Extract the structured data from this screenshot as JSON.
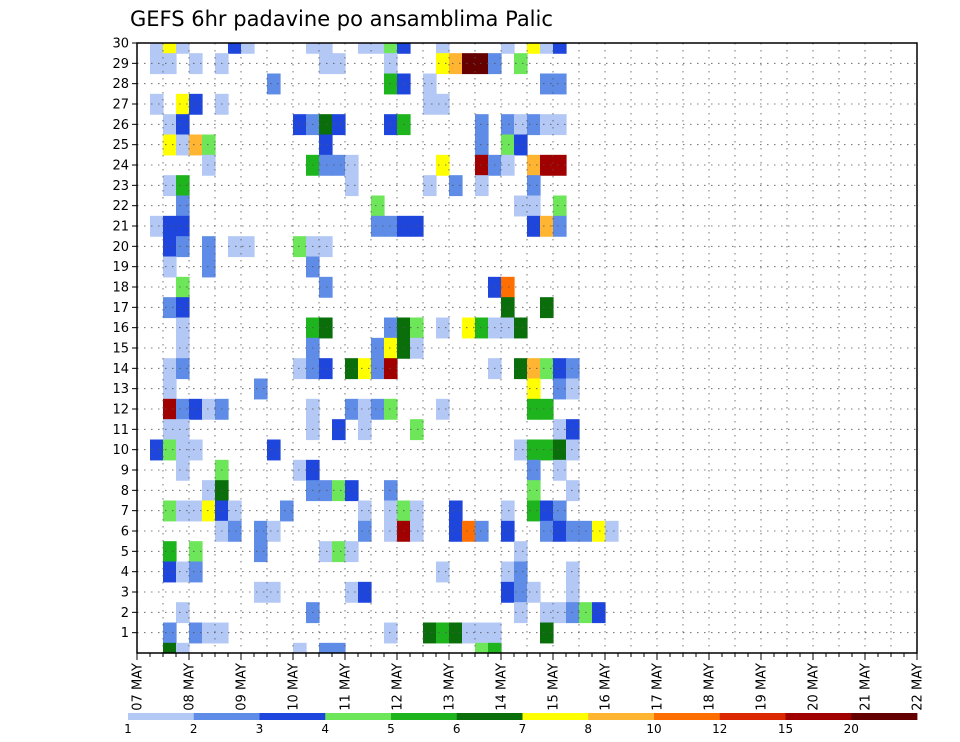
{
  "chart_data": {
    "type": "heatmap",
    "title": "GEFS 6hr padavine po ansamblima Palic",
    "x_ticks": [
      "07 MAY",
      "08 MAY",
      "09 MAY",
      "10 MAY",
      "11 MAY",
      "12 MAY",
      "13 MAY",
      "14 MAY",
      "15 MAY",
      "16 MAY",
      "17 MAY",
      "18 MAY",
      "19 MAY",
      "20 MAY",
      "21 MAY",
      "22 MAY"
    ],
    "y_ticks": [
      "1",
      "2",
      "3",
      "4",
      "5",
      "6",
      "7",
      "8",
      "9",
      "10",
      "11",
      "12",
      "13",
      "14",
      "15",
      "16",
      "17",
      "18",
      "19",
      "20",
      "21",
      "22",
      "23",
      "24",
      "25",
      "26",
      "27",
      "28",
      "29",
      "30"
    ],
    "time_steps_per_day": 4,
    "ensemble_range": [
      0,
      30
    ],
    "grid": true,
    "colorbar": {
      "labels": [
        "1",
        "2",
        "3",
        "4",
        "5",
        "6",
        "7",
        "8",
        "10",
        "12",
        "15",
        "20"
      ],
      "colors": [
        "#b4c8f5",
        "#5f8ce6",
        "#1e46dc",
        "#6ee65a",
        "#1eb41e",
        "#0a6e0a",
        "#ffff00",
        "#ffb432",
        "#ff6e00",
        "#dc2800",
        "#a00000",
        "#640000"
      ]
    },
    "cells": [
      [
        1,
        30,
        1
      ],
      [
        2,
        30,
        7
      ],
      [
        3,
        30,
        1
      ],
      [
        7,
        30,
        3
      ],
      [
        8,
        30,
        1
      ],
      [
        13,
        30,
        1
      ],
      [
        14,
        30,
        1
      ],
      [
        17,
        30,
        1
      ],
      [
        18,
        30,
        1
      ],
      [
        19,
        30,
        4
      ],
      [
        20,
        30,
        3
      ],
      [
        23,
        30,
        1
      ],
      [
        28,
        30,
        1
      ],
      [
        30,
        30,
        7
      ],
      [
        31,
        30,
        1
      ],
      [
        32,
        30,
        3
      ],
      [
        1,
        29,
        1
      ],
      [
        2,
        29,
        1
      ],
      [
        4,
        29,
        1
      ],
      [
        6,
        29,
        1
      ],
      [
        14,
        29,
        1
      ],
      [
        15,
        29,
        1
      ],
      [
        19,
        29,
        1
      ],
      [
        23,
        29,
        7
      ],
      [
        24,
        29,
        8
      ],
      [
        25,
        29,
        12
      ],
      [
        26,
        29,
        12
      ],
      [
        27,
        29,
        2
      ],
      [
        29,
        29,
        4
      ],
      [
        10,
        28,
        2
      ],
      [
        19,
        28,
        5
      ],
      [
        20,
        28,
        3
      ],
      [
        22,
        28,
        1
      ],
      [
        31,
        28,
        2
      ],
      [
        32,
        28,
        2
      ],
      [
        1,
        27,
        1
      ],
      [
        3,
        27,
        7
      ],
      [
        4,
        27,
        3
      ],
      [
        6,
        27,
        1
      ],
      [
        22,
        27,
        1
      ],
      [
        23,
        27,
        1
      ],
      [
        2,
        26,
        1
      ],
      [
        3,
        26,
        3
      ],
      [
        12,
        26,
        3
      ],
      [
        13,
        26,
        2
      ],
      [
        14,
        26,
        6
      ],
      [
        15,
        26,
        3
      ],
      [
        19,
        26,
        3
      ],
      [
        20,
        26,
        5
      ],
      [
        26,
        26,
        2
      ],
      [
        28,
        26,
        2
      ],
      [
        29,
        26,
        1
      ],
      [
        30,
        26,
        2
      ],
      [
        31,
        26,
        1
      ],
      [
        32,
        26,
        1
      ],
      [
        2,
        25,
        7
      ],
      [
        3,
        25,
        1
      ],
      [
        4,
        25,
        8
      ],
      [
        5,
        25,
        4
      ],
      [
        14,
        25,
        3
      ],
      [
        26,
        25,
        2
      ],
      [
        28,
        25,
        4
      ],
      [
        29,
        25,
        3
      ],
      [
        5,
        24,
        1
      ],
      [
        13,
        24,
        5
      ],
      [
        14,
        24,
        2
      ],
      [
        15,
        24,
        2
      ],
      [
        16,
        24,
        1
      ],
      [
        23,
        24,
        7
      ],
      [
        26,
        24,
        11
      ],
      [
        27,
        24,
        2
      ],
      [
        28,
        24,
        1
      ],
      [
        30,
        24,
        8
      ],
      [
        31,
        24,
        11
      ],
      [
        32,
        24,
        11
      ],
      [
        2,
        23,
        1
      ],
      [
        3,
        23,
        5
      ],
      [
        16,
        23,
        1
      ],
      [
        22,
        23,
        1
      ],
      [
        24,
        23,
        2
      ],
      [
        26,
        23,
        1
      ],
      [
        30,
        23,
        2
      ],
      [
        3,
        22,
        2
      ],
      [
        18,
        22,
        4
      ],
      [
        29,
        22,
        1
      ],
      [
        30,
        22,
        1
      ],
      [
        32,
        22,
        4
      ],
      [
        1,
        21,
        1
      ],
      [
        2,
        21,
        3
      ],
      [
        3,
        21,
        3
      ],
      [
        18,
        21,
        2
      ],
      [
        19,
        21,
        2
      ],
      [
        20,
        21,
        3
      ],
      [
        21,
        21,
        3
      ],
      [
        30,
        21,
        3
      ],
      [
        31,
        21,
        8
      ],
      [
        32,
        21,
        2
      ],
      [
        2,
        20,
        3
      ],
      [
        3,
        20,
        2
      ],
      [
        5,
        20,
        2
      ],
      [
        7,
        20,
        1
      ],
      [
        8,
        20,
        1
      ],
      [
        12,
        20,
        4
      ],
      [
        13,
        20,
        1
      ],
      [
        14,
        20,
        1
      ],
      [
        2,
        19,
        1
      ],
      [
        5,
        19,
        2
      ],
      [
        13,
        19,
        2
      ],
      [
        3,
        18,
        4
      ],
      [
        14,
        18,
        2
      ],
      [
        27,
        18,
        3
      ],
      [
        28,
        18,
        9
      ],
      [
        2,
        17,
        2
      ],
      [
        3,
        17,
        3
      ],
      [
        28,
        17,
        6
      ],
      [
        31,
        17,
        6
      ],
      [
        3,
        16,
        1
      ],
      [
        13,
        16,
        5
      ],
      [
        14,
        16,
        6
      ],
      [
        19,
        16,
        2
      ],
      [
        20,
        16,
        6
      ],
      [
        21,
        16,
        4
      ],
      [
        23,
        16,
        1
      ],
      [
        25,
        16,
        7
      ],
      [
        26,
        16,
        5
      ],
      [
        27,
        16,
        1
      ],
      [
        28,
        16,
        1
      ],
      [
        29,
        16,
        6
      ],
      [
        3,
        15,
        1
      ],
      [
        13,
        15,
        2
      ],
      [
        18,
        15,
        2
      ],
      [
        19,
        15,
        7
      ],
      [
        20,
        15,
        6
      ],
      [
        21,
        15,
        1
      ],
      [
        2,
        14,
        1
      ],
      [
        3,
        14,
        2
      ],
      [
        12,
        14,
        1
      ],
      [
        13,
        14,
        2
      ],
      [
        14,
        14,
        3
      ],
      [
        16,
        14,
        6
      ],
      [
        17,
        14,
        7
      ],
      [
        18,
        14,
        2
      ],
      [
        19,
        14,
        11
      ],
      [
        27,
        14,
        1
      ],
      [
        29,
        14,
        6
      ],
      [
        30,
        14,
        8
      ],
      [
        31,
        14,
        4
      ],
      [
        32,
        14,
        3
      ],
      [
        33,
        14,
        2
      ],
      [
        2,
        13,
        1
      ],
      [
        9,
        13,
        2
      ],
      [
        30,
        13,
        7
      ],
      [
        32,
        13,
        2
      ],
      [
        33,
        13,
        1
      ],
      [
        2,
        12,
        11
      ],
      [
        3,
        12,
        2
      ],
      [
        4,
        12,
        3
      ],
      [
        5,
        12,
        1
      ],
      [
        6,
        12,
        2
      ],
      [
        13,
        12,
        1
      ],
      [
        16,
        12,
        2
      ],
      [
        17,
        12,
        1
      ],
      [
        18,
        12,
        2
      ],
      [
        19,
        12,
        4
      ],
      [
        23,
        12,
        1
      ],
      [
        30,
        12,
        5
      ],
      [
        31,
        12,
        5
      ],
      [
        2,
        11,
        1
      ],
      [
        3,
        11,
        1
      ],
      [
        13,
        11,
        1
      ],
      [
        15,
        11,
        3
      ],
      [
        17,
        11,
        1
      ],
      [
        21,
        11,
        4
      ],
      [
        32,
        11,
        1
      ],
      [
        33,
        11,
        3
      ],
      [
        1,
        10,
        3
      ],
      [
        2,
        10,
        4
      ],
      [
        3,
        10,
        1
      ],
      [
        4,
        10,
        1
      ],
      [
        10,
        10,
        3
      ],
      [
        29,
        10,
        1
      ],
      [
        30,
        10,
        5
      ],
      [
        31,
        10,
        5
      ],
      [
        32,
        10,
        6
      ],
      [
        33,
        10,
        1
      ],
      [
        3,
        9,
        1
      ],
      [
        6,
        9,
        4
      ],
      [
        12,
        9,
        1
      ],
      [
        13,
        9,
        3
      ],
      [
        30,
        9,
        2
      ],
      [
        32,
        9,
        1
      ],
      [
        5,
        8,
        1
      ],
      [
        6,
        8,
        6
      ],
      [
        13,
        8,
        2
      ],
      [
        14,
        8,
        2
      ],
      [
        15,
        8,
        4
      ],
      [
        16,
        8,
        3
      ],
      [
        19,
        8,
        2
      ],
      [
        30,
        8,
        4
      ],
      [
        33,
        8,
        1
      ],
      [
        2,
        7,
        4
      ],
      [
        3,
        7,
        1
      ],
      [
        4,
        7,
        1
      ],
      [
        5,
        7,
        7
      ],
      [
        6,
        7,
        3
      ],
      [
        7,
        7,
        1
      ],
      [
        11,
        7,
        2
      ],
      [
        17,
        7,
        1
      ],
      [
        19,
        7,
        1
      ],
      [
        20,
        7,
        4
      ],
      [
        21,
        7,
        1
      ],
      [
        24,
        7,
        3
      ],
      [
        28,
        7,
        1
      ],
      [
        30,
        7,
        5
      ],
      [
        31,
        7,
        3
      ],
      [
        32,
        7,
        2
      ],
      [
        6,
        6,
        1
      ],
      [
        7,
        6,
        2
      ],
      [
        9,
        6,
        2
      ],
      [
        10,
        6,
        1
      ],
      [
        17,
        6,
        2
      ],
      [
        19,
        6,
        1
      ],
      [
        20,
        6,
        11
      ],
      [
        21,
        6,
        1
      ],
      [
        24,
        6,
        3
      ],
      [
        25,
        6,
        9
      ],
      [
        26,
        6,
        2
      ],
      [
        28,
        6,
        3
      ],
      [
        31,
        6,
        2
      ],
      [
        32,
        6,
        3
      ],
      [
        33,
        6,
        2
      ],
      [
        34,
        6,
        2
      ],
      [
        35,
        6,
        7
      ],
      [
        36,
        6,
        1
      ],
      [
        2,
        5,
        5
      ],
      [
        4,
        5,
        4
      ],
      [
        9,
        5,
        2
      ],
      [
        14,
        5,
        1
      ],
      [
        15,
        5,
        4
      ],
      [
        16,
        5,
        1
      ],
      [
        29,
        5,
        1
      ],
      [
        2,
        4,
        3
      ],
      [
        3,
        4,
        1
      ],
      [
        4,
        4,
        2
      ],
      [
        23,
        4,
        1
      ],
      [
        28,
        4,
        1
      ],
      [
        29,
        4,
        2
      ],
      [
        33,
        4,
        1
      ],
      [
        9,
        3,
        1
      ],
      [
        10,
        3,
        1
      ],
      [
        16,
        3,
        1
      ],
      [
        17,
        3,
        3
      ],
      [
        28,
        3,
        3
      ],
      [
        29,
        3,
        2
      ],
      [
        30,
        3,
        1
      ],
      [
        33,
        3,
        1
      ],
      [
        3,
        2,
        1
      ],
      [
        13,
        2,
        2
      ],
      [
        29,
        2,
        1
      ],
      [
        31,
        2,
        1
      ],
      [
        32,
        2,
        1
      ],
      [
        33,
        2,
        2
      ],
      [
        34,
        2,
        4
      ],
      [
        35,
        2,
        3
      ],
      [
        2,
        1,
        2
      ],
      [
        4,
        1,
        2
      ],
      [
        5,
        1,
        1
      ],
      [
        6,
        1,
        1
      ],
      [
        19,
        1,
        1
      ],
      [
        22,
        1,
        6
      ],
      [
        23,
        1,
        5
      ],
      [
        24,
        1,
        6
      ],
      [
        25,
        1,
        1
      ],
      [
        26,
        1,
        1
      ],
      [
        27,
        1,
        1
      ],
      [
        31,
        1,
        6
      ],
      [
        2,
        0,
        6
      ],
      [
        3,
        0,
        1
      ],
      [
        12,
        0,
        1
      ],
      [
        14,
        0,
        2
      ],
      [
        15,
        0,
        2
      ],
      [
        26,
        0,
        4
      ],
      [
        27,
        0,
        5
      ]
    ]
  }
}
